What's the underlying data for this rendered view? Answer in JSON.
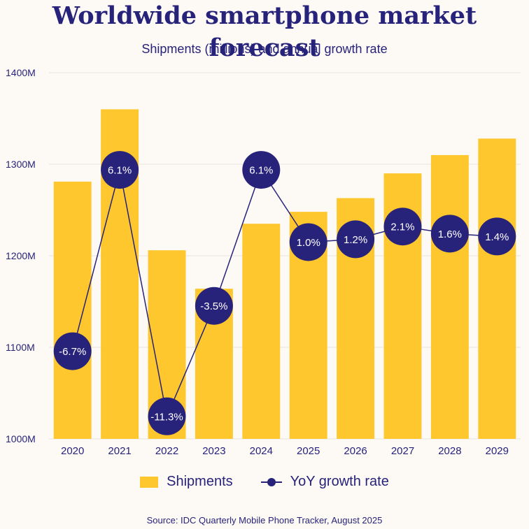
{
  "chart_data": {
    "type": "bar",
    "title": "Worldwide smartphone market forecast",
    "subtitle": "Shipments (millions) and annual growth rate",
    "categories": [
      "2020",
      "2021",
      "2022",
      "2023",
      "2024",
      "2025",
      "2026",
      "2027",
      "2028",
      "2029"
    ],
    "series": [
      {
        "name": "Shipments",
        "type": "bar",
        "color": "#fec72e",
        "values": [
          1281,
          1360,
          1206,
          1164,
          1235,
          1248,
          1263,
          1290,
          1310,
          1328
        ]
      },
      {
        "name": "YoY growth rate",
        "type": "line",
        "color": "#27237a",
        "values": [
          -6.7,
          6.1,
          -11.3,
          -3.5,
          6.1,
          1.0,
          1.2,
          2.1,
          1.6,
          1.4
        ],
        "labels": [
          "-6.7%",
          "6.1%",
          "-11.3%",
          "-3.5%",
          "6.1%",
          "1.0%",
          "1.2%",
          "2.1%",
          "1.6%",
          "1.4%"
        ]
      }
    ],
    "ylim": [
      1000,
      1400
    ],
    "yticks": [
      1000,
      1100,
      1200,
      1300,
      1400
    ],
    "ytick_labels": [
      "1000M",
      "1100M",
      "1200M",
      "1300M",
      "1400M"
    ],
    "growth_axis_hidden_range": [
      -12,
      6.5
    ],
    "xlabel": "",
    "ylabel": "",
    "grid": true,
    "legend": "bottom-center",
    "source": "Source:  IDC Quarterly Mobile Phone Tracker, August 2025"
  }
}
